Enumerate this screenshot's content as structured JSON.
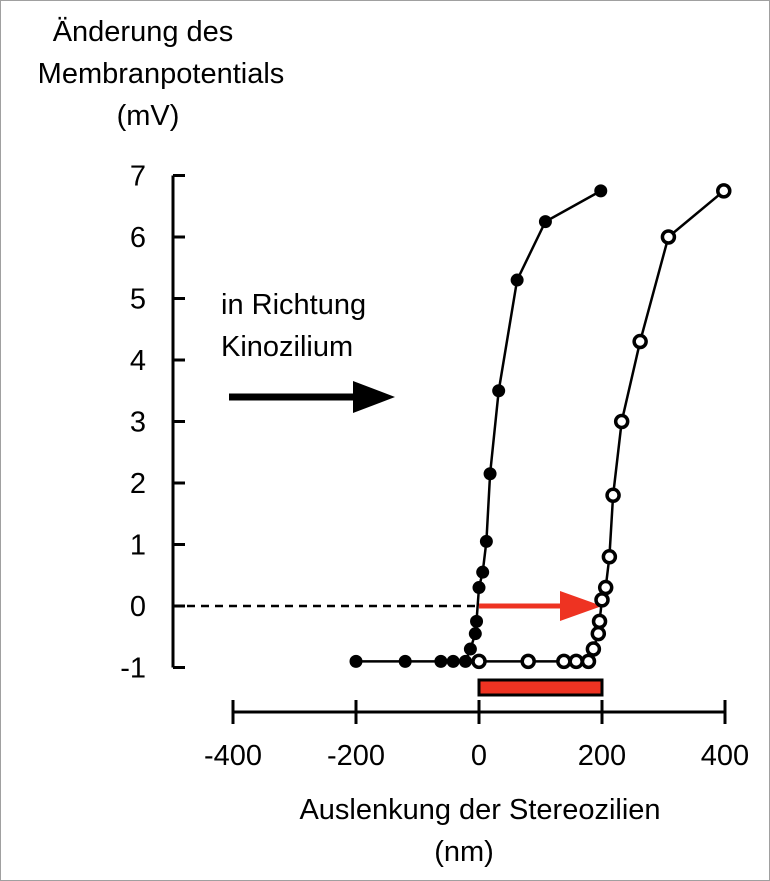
{
  "chart_data": {
    "type": "line",
    "ylabel_lines": [
      "Änderung des",
      "Membranpotentials",
      "(mV)"
    ],
    "xlabel_lines": [
      "Auslenkung der Stereozilien",
      "(nm)"
    ],
    "xticks": [
      -400,
      -200,
      0,
      200,
      400
    ],
    "yticks": [
      7,
      6,
      5,
      4,
      3,
      2,
      1,
      0,
      -1
    ],
    "xlim": [
      -400,
      400
    ],
    "ylim": [
      -1,
      7
    ],
    "grid": false,
    "annotation_lines": [
      "in Richtung",
      "Kinozilium"
    ],
    "shift_nm": 200,
    "colors": {
      "line": "#000000",
      "shift_arrow": "#ee3322",
      "shift_bar": "#ee3322",
      "bar_outline": "#000000"
    },
    "series": [
      {
        "marker": "filled",
        "points": [
          [
            -200,
            -0.9
          ],
          [
            -120,
            -0.9
          ],
          [
            -62,
            -0.9
          ],
          [
            -42,
            -0.9
          ],
          [
            -22,
            -0.9
          ],
          [
            -14,
            -0.7
          ],
          [
            -6,
            -0.45
          ],
          [
            -4,
            -0.25
          ],
          [
            0,
            0.3
          ],
          [
            6,
            0.55
          ],
          [
            12,
            1.05
          ],
          [
            18,
            2.15
          ],
          [
            32,
            3.5
          ],
          [
            62,
            5.3
          ],
          [
            108,
            6.25
          ],
          [
            198,
            6.75
          ]
        ]
      },
      {
        "marker": "open",
        "points": [
          [
            0,
            -0.9
          ],
          [
            80,
            -0.9
          ],
          [
            138,
            -0.9
          ],
          [
            158,
            -0.9
          ],
          [
            178,
            -0.9
          ],
          [
            186,
            -0.7
          ],
          [
            194,
            -0.45
          ],
          [
            196,
            -0.25
          ],
          [
            200,
            0.1
          ],
          [
            206,
            0.3
          ],
          [
            212,
            0.8
          ],
          [
            218,
            1.8
          ],
          [
            232,
            3.0
          ],
          [
            262,
            4.3
          ],
          [
            308,
            6.0
          ],
          [
            398,
            6.75
          ]
        ]
      }
    ]
  }
}
